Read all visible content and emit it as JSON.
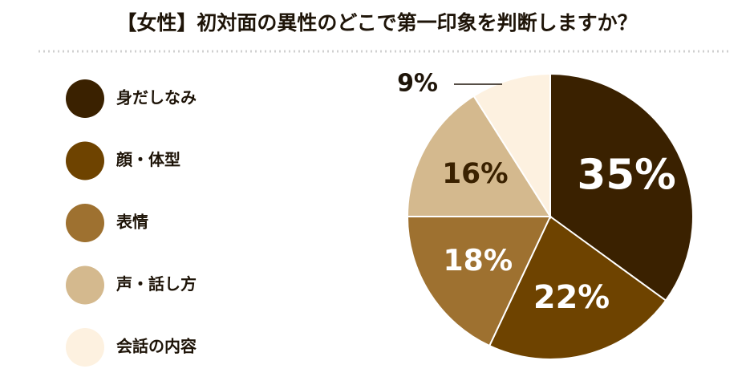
{
  "chart_data": {
    "type": "pie",
    "title": "【女性】初対面の異性のどこで第一印象を判断しますか？",
    "categories": [
      "身だしなみ",
      "顔・体型",
      "表情",
      "声・話し方",
      "会話の内容"
    ],
    "values": [
      35,
      22,
      18,
      16,
      9
    ],
    "value_labels": [
      "35%",
      "22%",
      "18%",
      "16%",
      "9%"
    ],
    "colors": [
      "#3a2100",
      "#6e4300",
      "#9e7130",
      "#d4b98e",
      "#fdf1e0"
    ]
  }
}
